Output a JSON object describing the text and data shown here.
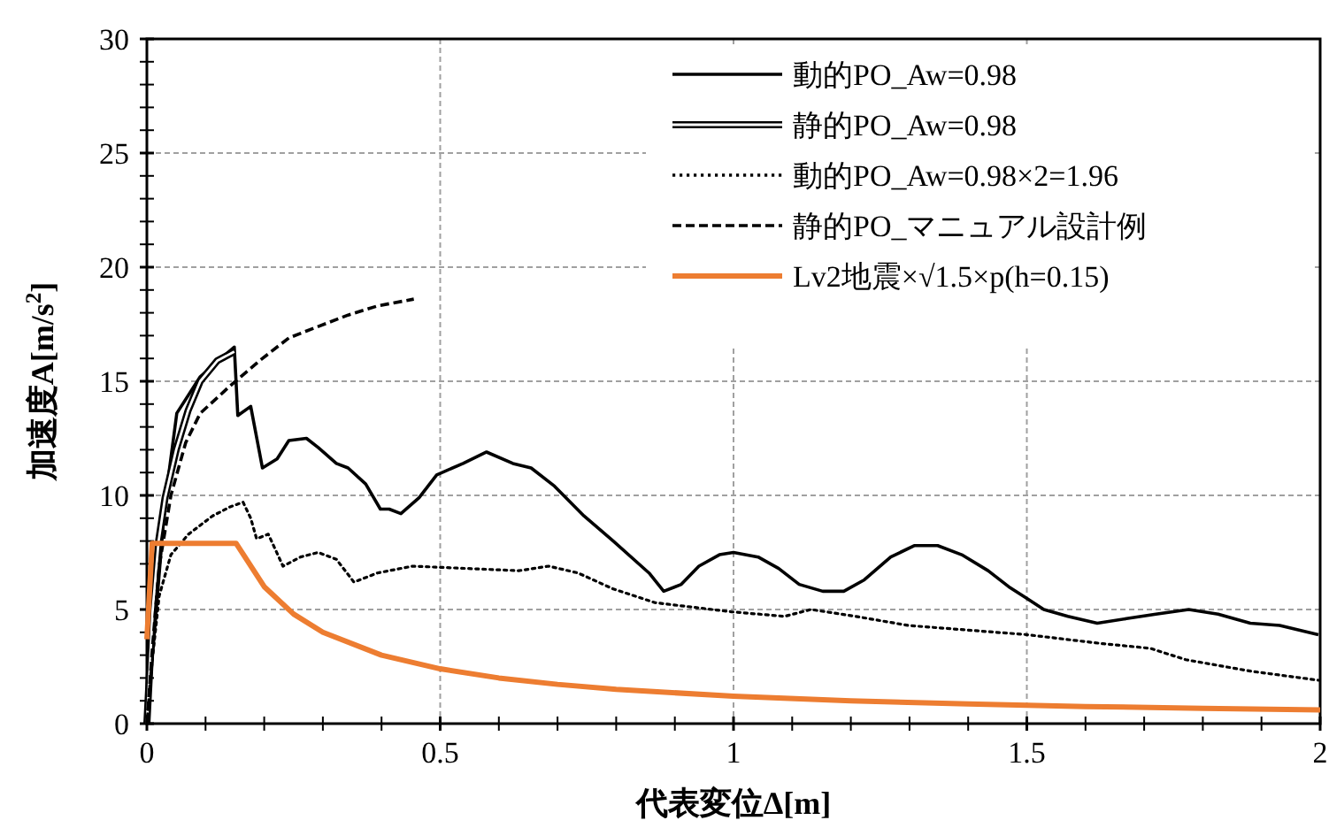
{
  "chart_data": {
    "type": "line",
    "xlabel": "代表変位Δ[m]",
    "ylabel": "加速度A[m/s$^{2}$]",
    "xlim": [
      0,
      2
    ],
    "xticks": [
      0,
      0.5,
      1,
      1.5,
      2
    ],
    "ylim": [
      0,
      30
    ],
    "yticks": [
      0,
      5,
      10,
      15,
      20,
      25,
      30
    ],
    "grid": true,
    "legend": "top right",
    "series": [
      {
        "name": "動的PO_Aw=0.98",
        "color": "#000000",
        "line_style": "solid",
        "x": [
          0,
          0.031,
          0.051,
          0.091,
          0.149,
          0.155,
          0.177,
          0.197,
          0.222,
          0.242,
          0.272,
          0.292,
          0.323,
          0.343,
          0.373,
          0.398,
          0.413,
          0.433,
          0.464,
          0.494,
          0.539,
          0.579,
          0.624,
          0.655,
          0.695,
          0.745,
          0.795,
          0.856,
          0.881,
          0.911,
          0.941,
          0.976,
          1.0,
          1.042,
          1.077,
          1.112,
          1.152,
          1.188,
          1.223,
          1.268,
          1.308,
          1.348,
          1.389,
          1.434,
          1.469,
          1.499,
          1.529,
          1.57,
          1.62,
          1.67,
          1.72,
          1.776,
          1.826,
          1.881,
          1.931,
          1.997
        ],
        "values": [
          0,
          9.7,
          13.6,
          15.2,
          16.5,
          13.5,
          13.9,
          11.2,
          11.6,
          12.4,
          12.5,
          12.1,
          11.4,
          11.2,
          10.5,
          9.4,
          9.4,
          9.2,
          9.9,
          10.9,
          11.4,
          11.9,
          11.4,
          11.2,
          10.4,
          9.1,
          8.0,
          6.6,
          5.8,
          6.1,
          6.9,
          7.4,
          7.5,
          7.3,
          6.8,
          6.1,
          5.8,
          5.8,
          6.3,
          7.3,
          7.8,
          7.8,
          7.4,
          6.7,
          6.0,
          5.5,
          5.0,
          4.7,
          4.4,
          4.6,
          4.8,
          5.0,
          4.8,
          4.4,
          4.3,
          3.9
        ]
      },
      {
        "name": "静的PO_Aw=0.98",
        "color": "#000000",
        "line_style": "solid",
        "x": [
          0,
          0.01,
          0.02,
          0.031,
          0.05,
          0.07,
          0.091,
          0.12,
          0.149
        ],
        "values": [
          0,
          5,
          8,
          9.9,
          12,
          13.7,
          15,
          15.9,
          16.3
        ]
      },
      {
        "name": "動的PO_Aw=0.98×2=1.96",
        "color": "#000000",
        "line_style": "dotted",
        "x": [
          0,
          0.006,
          0.021,
          0.041,
          0.071,
          0.112,
          0.142,
          0.164,
          0.177,
          0.187,
          0.207,
          0.232,
          0.262,
          0.292,
          0.323,
          0.353,
          0.393,
          0.453,
          0.544,
          0.634,
          0.685,
          0.735,
          0.795,
          0.866,
          0.996,
          1.087,
          1.132,
          1.208,
          1.298,
          1.499,
          1.63,
          1.71,
          1.771,
          1.881,
          1.997
        ],
        "values": [
          0,
          2,
          5.6,
          7.4,
          8.3,
          9.1,
          9.5,
          9.7,
          9.0,
          8.1,
          8.3,
          6.9,
          7.3,
          7.5,
          7.2,
          6.2,
          6.6,
          6.9,
          6.8,
          6.7,
          6.9,
          6.6,
          5.9,
          5.3,
          4.9,
          4.7,
          5.0,
          4.7,
          4.3,
          3.9,
          3.5,
          3.3,
          2.8,
          2.3,
          1.9
        ]
      },
      {
        "name": "静的PO_マニュアル設計例",
        "color": "#000000",
        "line_style": "dashed",
        "x": [
          0,
          0.01,
          0.021,
          0.041,
          0.066,
          0.091,
          0.142,
          0.192,
          0.242,
          0.292,
          0.343,
          0.393,
          0.455
        ],
        "values": [
          0,
          3.5,
          6.9,
          10,
          12.3,
          13.6,
          14.8,
          15.9,
          16.9,
          17.4,
          17.9,
          18.3,
          18.6
        ]
      },
      {
        "name": "Lv2地震×√1.5×p(h=0.15)",
        "color": "#ed7d31",
        "line_style": "solid",
        "x": [
          0,
          0.009,
          0.152,
          0.2,
          0.25,
          0.3,
          0.4,
          0.5,
          0.6,
          0.7,
          0.8,
          1.0,
          1.2,
          1.4,
          1.6,
          1.8,
          2.0
        ],
        "values": [
          3.7,
          7.9,
          7.9,
          6.0,
          4.8,
          4.0,
          3.0,
          2.4,
          2.0,
          1.72,
          1.5,
          1.2,
          1.0,
          0.86,
          0.75,
          0.67,
          0.6
        ]
      }
    ]
  }
}
